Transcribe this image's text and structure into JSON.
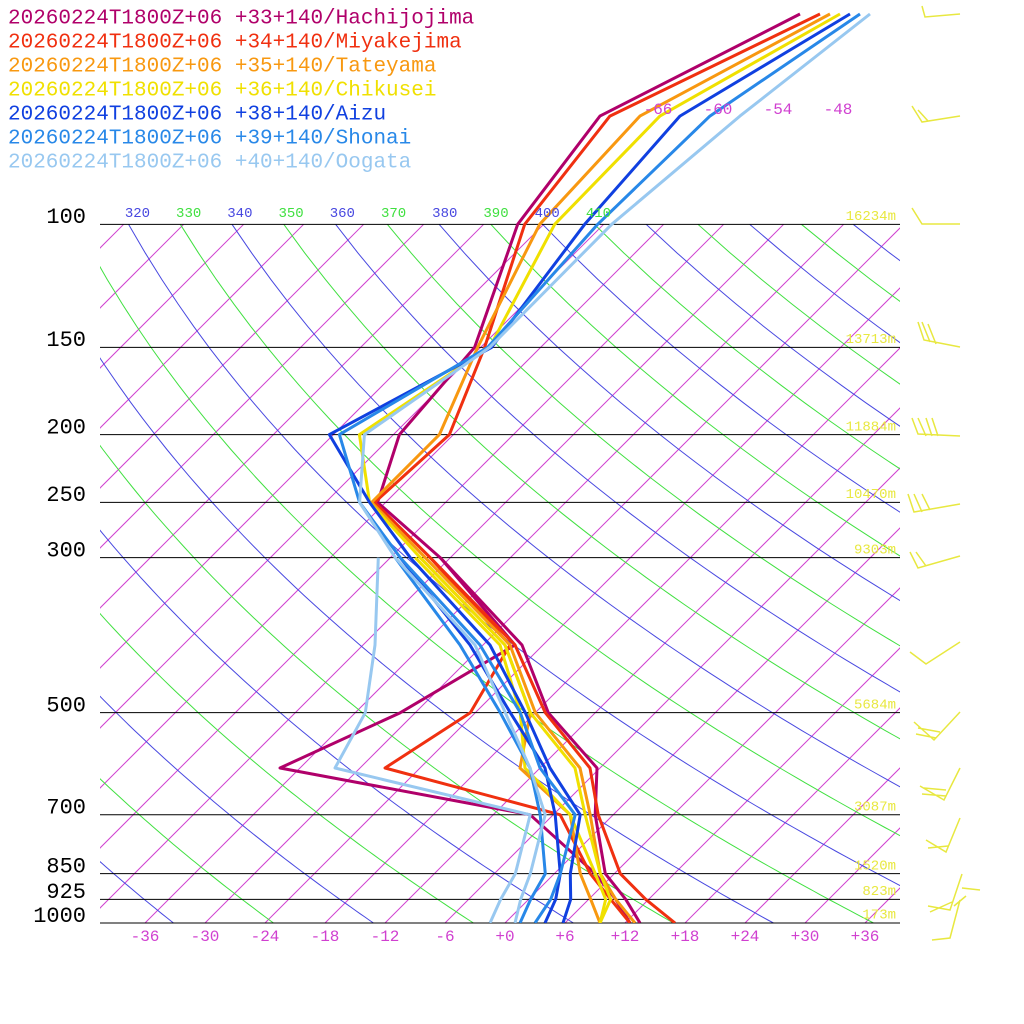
{
  "chart_data": {
    "type": "skewt",
    "pressure": [
      1000,
      925,
      850,
      700,
      600,
      500,
      400,
      300,
      250,
      200,
      150,
      100,
      70,
      50
    ],
    "series": [
      {
        "name": "20260224T1800Z+06 +33+140/Hachijojima",
        "color": "#b0006a",
        "temperature": [
          13.5,
          9.7,
          5.1,
          -1.8,
          -6.3,
          -16.7,
          -26.1,
          -43.0,
          -54.8,
          -59.4,
          -60.6,
          -68.6,
          -71.2,
          -61.4
        ],
        "dewpoint": [
          12.5,
          8.7,
          4.1,
          -8.3,
          -38.0,
          -31.5,
          -26.8,
          -43.0,
          null,
          null,
          null,
          null,
          null,
          null
        ]
      },
      {
        "name": "20260224T1800Z+06 +34+140/Miyakejima",
        "color": "#f03010",
        "temperature": [
          17.0,
          11.7,
          6.6,
          -1.5,
          -7.0,
          -17.0,
          -26.8,
          -44.0,
          -55.1,
          -54.4,
          -59.6,
          -67.9,
          -70.2,
          -59.4
        ],
        "dewpoint": [
          12.5,
          8.2,
          3.6,
          -5.3,
          -27.5,
          -24.5,
          -27.3,
          -44.0,
          null,
          null,
          null,
          null,
          null,
          null
        ]
      },
      {
        "name": "20260224T1800Z+06 +35+140/Tateyama",
        "color": "#f89810",
        "temperature": [
          13.0,
          8.7,
          4.6,
          -2.3,
          -8.0,
          -18.0,
          -27.3,
          -44.5,
          -55.4,
          -55.4,
          -60.3,
          -66.4,
          -67.2,
          -58.4
        ],
        "dewpoint": [
          9.5,
          6.2,
          2.6,
          -4.3,
          -14.0,
          -18.5,
          -27.8,
          -45.0,
          null,
          null,
          null,
          null,
          null,
          null
        ]
      },
      {
        "name": "20260224T1800Z+06 +36+140/Chikusei",
        "color": "#f0e000",
        "temperature": [
          9.5,
          8.2,
          4.6,
          -2.8,
          -8.5,
          -18.5,
          -27.8,
          -45.0,
          -55.6,
          -63.4,
          -59.1,
          -64.9,
          -65.2,
          -57.4
        ],
        "dewpoint": [
          9.5,
          7.7,
          4.1,
          -4.3,
          -13.5,
          -19.5,
          -28.3,
          -45.5,
          null,
          null,
          null,
          null,
          null,
          null
        ]
      },
      {
        "name": "20260224T1800Z+06 +38+140/Aizu",
        "color": "#1040e0",
        "temperature": [
          5.8,
          4.2,
          1.6,
          -3.3,
          -11.0,
          -19.0,
          -29.3,
          -46.0,
          -55.6,
          -66.4,
          -58.9,
          -61.9,
          -63.2,
          -56.4
        ],
        "dewpoint": [
          4.0,
          2.7,
          0.6,
          -5.8,
          -11.5,
          -20.5,
          -31.3,
          -47.0,
          null,
          null,
          null,
          null,
          null,
          null
        ]
      },
      {
        "name": "20260224T1800Z+06 +39+140/Shonai",
        "color": "#2888e8",
        "temperature": [
          3.0,
          2.2,
          0.6,
          -3.8,
          -12.0,
          -19.5,
          -30.3,
          -47.0,
          -56.6,
          -65.4,
          -59.3,
          -60.6,
          -60.2,
          -55.4
        ],
        "dewpoint": [
          1.5,
          0.2,
          -0.9,
          -7.3,
          -13.0,
          -21.5,
          -32.3,
          -47.5,
          null,
          null,
          null,
          null,
          null,
          null
        ]
      },
      {
        "name": "20260224T1800Z+06 +40+140/Oogata",
        "color": "#98c8f0",
        "temperature": [
          1.0,
          -0.8,
          -2.4,
          -6.8,
          -13.0,
          -21.0,
          -30.8,
          -47.5,
          -56.6,
          -62.9,
          -59.1,
          -59.2,
          -57.2,
          -54.4
        ],
        "dewpoint": [
          -1.5,
          -2.8,
          -3.9,
          -8.3,
          -32.5,
          -35.0,
          -40.8,
          -49.2,
          null,
          null,
          null,
          null,
          null,
          null
        ]
      }
    ],
    "xlim": [
      -40.5,
      39.5
    ],
    "ylim": [
      1000,
      50
    ],
    "log_y": true,
    "xticks": [
      -36,
      -30,
      -24,
      -18,
      -12,
      -6,
      {
        "value": 0,
        "label": "+0"
      },
      {
        "value": 6,
        "label": "+6"
      },
      {
        "value": 12,
        "label": "+12"
      },
      {
        "value": 18,
        "label": "+18"
      },
      {
        "value": 24,
        "label": "+24"
      },
      {
        "value": 30,
        "label": "+30"
      },
      {
        "value": 36,
        "label": "+36"
      }
    ],
    "yticks": [
      1000,
      925,
      850,
      700,
      500,
      300,
      250,
      200,
      150,
      100
    ],
    "upper_isotherm_ticks": [
      -66,
      -60,
      -54,
      -48
    ],
    "theta_ticks": [
      320,
      330,
      340,
      350,
      360,
      370,
      380,
      390,
      400,
      410
    ],
    "height_labels": [
      {
        "value": 1000,
        "label": "173m"
      },
      {
        "value": 925,
        "label": "823m"
      },
      {
        "value": 850,
        "label": "1520m"
      },
      {
        "value": 700,
        "label": "3087m"
      },
      {
        "value": 500,
        "label": "5684m"
      },
      {
        "value": 300,
        "label": "9303m"
      },
      {
        "value": 250,
        "label": "10470m"
      },
      {
        "value": 200,
        "label": "11884m"
      },
      {
        "value": 150,
        "label": "13713m"
      },
      {
        "value": 100,
        "label": "16234m"
      }
    ]
  }
}
